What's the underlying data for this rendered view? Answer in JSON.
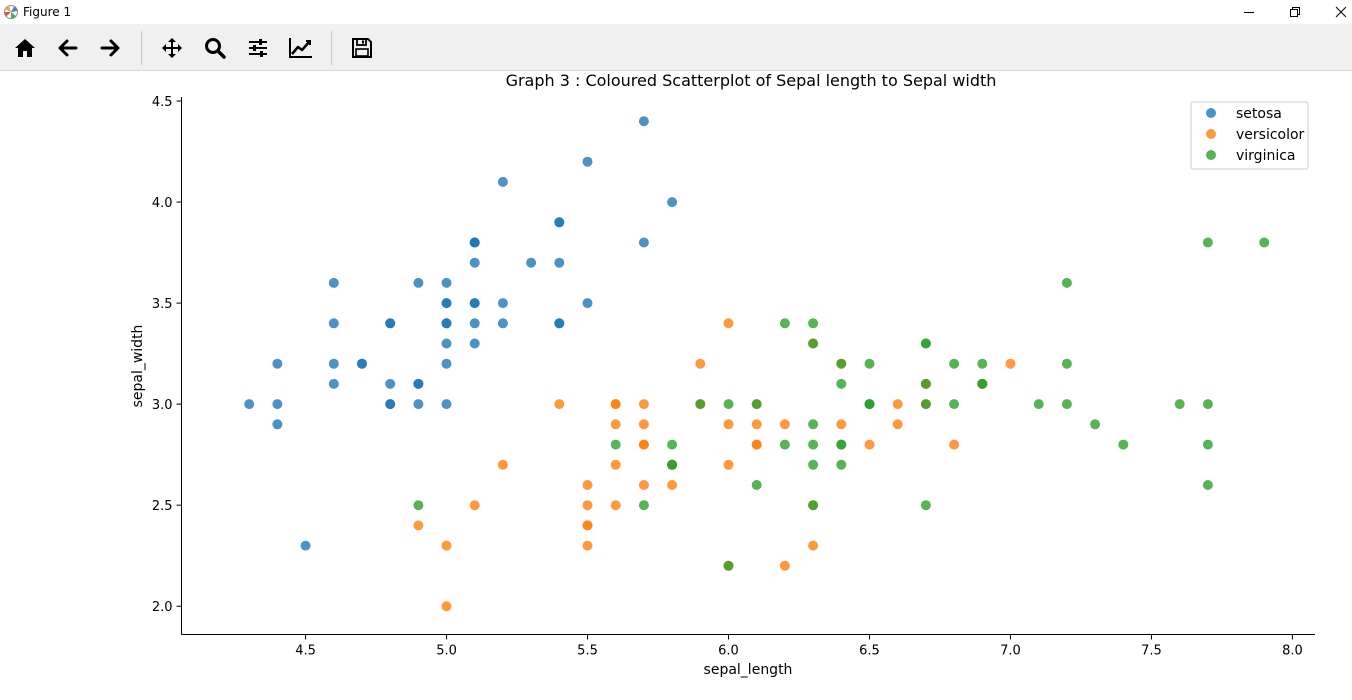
{
  "window": {
    "title": "Figure 1",
    "buttons": {
      "minimize": "minimize-icon",
      "maximize": "restore-icon",
      "close": "close-icon"
    }
  },
  "toolbar": {
    "tools": [
      {
        "name": "home",
        "icon": "home-icon"
      },
      {
        "name": "back",
        "icon": "arrow-left-icon"
      },
      {
        "name": "forward",
        "icon": "arrow-right-icon"
      },
      {
        "name": "pan",
        "icon": "move-icon"
      },
      {
        "name": "zoom",
        "icon": "magnifier-icon"
      },
      {
        "name": "configure-subplots",
        "icon": "sliders-icon"
      },
      {
        "name": "edit-axis",
        "icon": "line-chart-icon"
      },
      {
        "name": "save",
        "icon": "floppy-disk-icon"
      }
    ]
  },
  "chart_data": {
    "type": "scatter",
    "title": "Graph 3 : Coloured Scatterplot of Sepal length to Sepal width",
    "xlabel": "sepal_length",
    "ylabel": "sepal_width",
    "xlim": [
      4.06,
      8.08
    ],
    "ylim": [
      1.86,
      4.52
    ],
    "xticks": [
      "4.5",
      "5.0",
      "5.5",
      "6.0",
      "6.5",
      "7.0",
      "7.5",
      "8.0"
    ],
    "yticks": [
      "2.0",
      "2.5",
      "3.0",
      "3.5",
      "4.0",
      "4.5"
    ],
    "legend_position": "top-right",
    "series": [
      {
        "name": "setosa",
        "color": "#1f77b4",
        "points": [
          [
            5.1,
            3.5
          ],
          [
            4.9,
            3.0
          ],
          [
            4.7,
            3.2
          ],
          [
            4.6,
            3.1
          ],
          [
            5.0,
            3.6
          ],
          [
            5.4,
            3.9
          ],
          [
            4.6,
            3.4
          ],
          [
            5.0,
            3.4
          ],
          [
            4.4,
            2.9
          ],
          [
            4.9,
            3.1
          ],
          [
            5.4,
            3.7
          ],
          [
            4.8,
            3.4
          ],
          [
            4.8,
            3.0
          ],
          [
            4.3,
            3.0
          ],
          [
            5.8,
            4.0
          ],
          [
            5.7,
            4.4
          ],
          [
            5.4,
            3.9
          ],
          [
            5.1,
            3.5
          ],
          [
            5.7,
            3.8
          ],
          [
            5.1,
            3.8
          ],
          [
            5.4,
            3.4
          ],
          [
            5.1,
            3.7
          ],
          [
            4.6,
            3.6
          ],
          [
            5.1,
            3.3
          ],
          [
            4.8,
            3.4
          ],
          [
            5.0,
            3.0
          ],
          [
            5.0,
            3.4
          ],
          [
            5.2,
            3.5
          ],
          [
            5.2,
            3.4
          ],
          [
            4.7,
            3.2
          ],
          [
            4.8,
            3.1
          ],
          [
            5.4,
            3.4
          ],
          [
            5.2,
            4.1
          ],
          [
            5.5,
            4.2
          ],
          [
            4.9,
            3.1
          ],
          [
            5.0,
            3.2
          ],
          [
            5.5,
            3.5
          ],
          [
            4.9,
            3.6
          ],
          [
            4.4,
            3.0
          ],
          [
            5.1,
            3.4
          ],
          [
            5.0,
            3.5
          ],
          [
            4.5,
            2.3
          ],
          [
            4.4,
            3.2
          ],
          [
            5.0,
            3.5
          ],
          [
            5.1,
            3.8
          ],
          [
            4.8,
            3.0
          ],
          [
            5.1,
            3.8
          ],
          [
            4.6,
            3.2
          ],
          [
            5.3,
            3.7
          ],
          [
            5.0,
            3.3
          ]
        ]
      },
      {
        "name": "versicolor",
        "color": "#ff7f0e",
        "points": [
          [
            7.0,
            3.2
          ],
          [
            6.4,
            3.2
          ],
          [
            6.9,
            3.1
          ],
          [
            5.5,
            2.3
          ],
          [
            6.5,
            2.8
          ],
          [
            5.7,
            2.8
          ],
          [
            6.3,
            3.3
          ],
          [
            4.9,
            2.4
          ],
          [
            6.6,
            2.9
          ],
          [
            5.2,
            2.7
          ],
          [
            5.0,
            2.0
          ],
          [
            5.9,
            3.0
          ],
          [
            6.0,
            2.2
          ],
          [
            6.1,
            2.9
          ],
          [
            5.6,
            2.9
          ],
          [
            6.7,
            3.1
          ],
          [
            5.6,
            3.0
          ],
          [
            5.8,
            2.7
          ],
          [
            6.2,
            2.2
          ],
          [
            5.6,
            2.5
          ],
          [
            5.9,
            3.2
          ],
          [
            6.1,
            2.8
          ],
          [
            6.3,
            2.5
          ],
          [
            6.1,
            2.8
          ],
          [
            6.4,
            2.9
          ],
          [
            6.6,
            3.0
          ],
          [
            6.8,
            2.8
          ],
          [
            6.7,
            3.0
          ],
          [
            6.0,
            2.9
          ],
          [
            5.7,
            2.6
          ],
          [
            5.5,
            2.4
          ],
          [
            5.5,
            2.4
          ],
          [
            5.8,
            2.7
          ],
          [
            6.0,
            2.7
          ],
          [
            5.4,
            3.0
          ],
          [
            6.0,
            3.4
          ],
          [
            6.7,
            3.1
          ],
          [
            6.3,
            2.3
          ],
          [
            5.6,
            3.0
          ],
          [
            5.5,
            2.5
          ],
          [
            5.5,
            2.6
          ],
          [
            6.1,
            3.0
          ],
          [
            5.8,
            2.6
          ],
          [
            5.0,
            2.3
          ],
          [
            5.6,
            2.7
          ],
          [
            5.7,
            3.0
          ],
          [
            5.7,
            2.9
          ],
          [
            6.2,
            2.9
          ],
          [
            5.1,
            2.5
          ],
          [
            5.7,
            2.8
          ]
        ]
      },
      {
        "name": "virginica",
        "color": "#2ca02c",
        "points": [
          [
            6.3,
            3.3
          ],
          [
            5.8,
            2.7
          ],
          [
            7.1,
            3.0
          ],
          [
            6.3,
            2.9
          ],
          [
            6.5,
            3.0
          ],
          [
            7.6,
            3.0
          ],
          [
            4.9,
            2.5
          ],
          [
            7.3,
            2.9
          ],
          [
            6.7,
            2.5
          ],
          [
            7.2,
            3.6
          ],
          [
            6.5,
            3.2
          ],
          [
            6.4,
            2.7
          ],
          [
            6.8,
            3.0
          ],
          [
            5.7,
            2.5
          ],
          [
            5.8,
            2.8
          ],
          [
            6.4,
            3.2
          ],
          [
            6.5,
            3.0
          ],
          [
            7.7,
            3.8
          ],
          [
            7.7,
            2.6
          ],
          [
            6.0,
            2.2
          ],
          [
            6.9,
            3.2
          ],
          [
            5.6,
            2.8
          ],
          [
            7.7,
            2.8
          ],
          [
            6.3,
            2.7
          ],
          [
            6.7,
            3.3
          ],
          [
            7.2,
            3.2
          ],
          [
            6.2,
            2.8
          ],
          [
            6.1,
            3.0
          ],
          [
            6.4,
            2.8
          ],
          [
            7.2,
            3.0
          ],
          [
            7.4,
            2.8
          ],
          [
            7.9,
            3.8
          ],
          [
            6.4,
            2.8
          ],
          [
            6.3,
            2.8
          ],
          [
            6.1,
            2.6
          ],
          [
            7.7,
            3.0
          ],
          [
            6.3,
            3.4
          ],
          [
            6.4,
            3.1
          ],
          [
            6.0,
            3.0
          ],
          [
            6.9,
            3.1
          ],
          [
            6.7,
            3.1
          ],
          [
            6.9,
            3.1
          ],
          [
            5.8,
            2.7
          ],
          [
            6.8,
            3.2
          ],
          [
            6.7,
            3.3
          ],
          [
            6.7,
            3.0
          ],
          [
            6.3,
            2.5
          ],
          [
            6.5,
            3.0
          ],
          [
            6.2,
            3.4
          ],
          [
            5.9,
            3.0
          ]
        ]
      }
    ]
  }
}
